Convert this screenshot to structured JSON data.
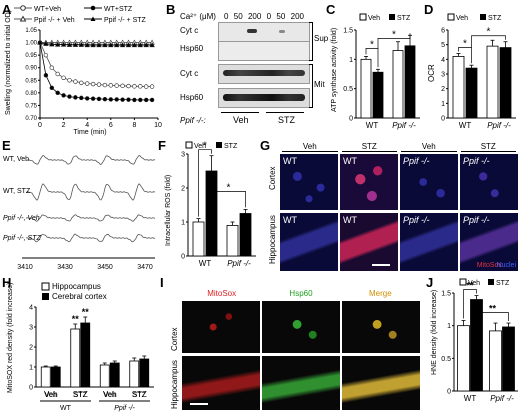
{
  "panels": {
    "A": {
      "letter": "A",
      "legend": [
        "WT+Veh",
        "WT+STZ",
        "Ppif -/- + Veh",
        "Ppif -/- + STZ"
      ],
      "ylabel": "Swelling (normalized to initial OD)",
      "xlabel": "Time (min)"
    },
    "B": {
      "letter": "B",
      "ca_label": "Ca²⁺ (μM)",
      "conc": [
        "0",
        "50",
        "200",
        "0",
        "50",
        "200"
      ],
      "rows": [
        "Cyt c",
        "Hsp60",
        "Cyt c",
        "Hsp60"
      ],
      "frac": [
        "Sup",
        "Mit"
      ],
      "ppif_label": "Ppif -/-:",
      "groups": [
        "Veh",
        "STZ"
      ]
    },
    "C": {
      "letter": "C",
      "legend": [
        "Veh",
        "STZ"
      ],
      "ylabel": "ATP synthase activity (fold)"
    },
    "D": {
      "letter": "D",
      "legend": [
        "Veh",
        "STZ"
      ],
      "ylabel": "OCR"
    },
    "E": {
      "letter": "E",
      "traces": [
        "WT, Veh",
        "WT, STZ",
        "Ppif -/-, Veh",
        "Ppif -/-, STZ"
      ],
      "xticks": [
        "3410",
        "3430",
        "3450",
        "3470"
      ]
    },
    "F": {
      "letter": "F",
      "legend": [
        "Veh",
        "STZ"
      ],
      "ylabel": "Intracellular ROS (fold)"
    },
    "G": {
      "letter": "G",
      "cols": [
        "Veh",
        "STZ",
        "Veh",
        "STZ"
      ],
      "rows": [
        "Cortex",
        "Hippocampus"
      ],
      "tiles": [
        "WT",
        "WT",
        "Ppif -/-",
        "Ppif -/-"
      ],
      "stain": "MitoSox",
      "nuclei": "Nuclei"
    },
    "H": {
      "letter": "H",
      "legend": [
        "Hippocampus",
        "Cerebral cortex"
      ],
      "ylabel": "MitoSOX red density (fold increase)"
    },
    "I": {
      "letter": "I",
      "cols": [
        "MitoSox",
        "Hsp60",
        "Merge"
      ],
      "rows": [
        "Cortex",
        "Hippocampus"
      ]
    },
    "J": {
      "letter": "J",
      "legend": [
        "Veh",
        "STZ"
      ],
      "ylabel": "HNE density (fold increase)"
    }
  },
  "chart_data": [
    {
      "panel": "A",
      "type": "line",
      "xlabel": "Time (min)",
      "ylabel": "Swelling (normalized to initial OD)",
      "xlim": [
        0,
        10
      ],
      "ylim": [
        0.7,
        1.05
      ],
      "xticks": [
        0,
        2,
        4,
        6,
        8,
        10
      ],
      "yticks": [
        0.7,
        0.75,
        0.8,
        0.85,
        0.9,
        0.95,
        1.0,
        1.05
      ],
      "x": [
        0,
        0.5,
        1,
        1.5,
        2,
        2.5,
        3,
        3.5,
        4,
        4.5,
        5,
        5.5,
        6,
        6.5,
        7,
        7.5,
        8,
        8.5,
        9,
        9.5
      ],
      "series": [
        {
          "name": "WT+Veh",
          "marker": "open-circle",
          "values": [
            1.0,
            0.95,
            0.9,
            0.875,
            0.86,
            0.85,
            0.845,
            0.84,
            0.837,
            0.835,
            0.833,
            0.831,
            0.83,
            0.829,
            0.828,
            0.827,
            0.826,
            0.826,
            0.825,
            0.825
          ]
        },
        {
          "name": "WT+STZ",
          "marker": "filled-circle",
          "values": [
            1.0,
            0.87,
            0.82,
            0.8,
            0.79,
            0.785,
            0.782,
            0.78,
            0.778,
            0.777,
            0.776,
            0.775,
            0.774,
            0.774,
            0.773,
            0.773,
            0.772,
            0.772,
            0.772,
            0.772
          ]
        },
        {
          "name": "Ppif -/- + Veh",
          "marker": "open-triangle",
          "values": [
            1.0,
            1.0,
            1.0,
            1.0,
            1.0,
            1.0,
            1.0,
            1.0,
            1.0,
            1.0,
            1.0,
            1.0,
            1.0,
            1.0,
            1.0,
            1.0,
            1.0,
            1.0,
            1.0,
            1.0
          ]
        },
        {
          "name": "Ppif -/- + STZ",
          "marker": "filled-triangle",
          "values": [
            1.0,
            0.995,
            0.993,
            0.992,
            0.992,
            0.991,
            0.991,
            0.991,
            0.99,
            0.99,
            0.99,
            0.99,
            0.99,
            0.99,
            0.99,
            0.99,
            0.99,
            0.99,
            0.99,
            0.99
          ]
        }
      ]
    },
    {
      "panel": "C",
      "type": "bar",
      "ylabel": "ATP synthase activity (fold)",
      "categories": [
        "WT",
        "Ppif -/-"
      ],
      "ylim": [
        0,
        1.5
      ],
      "yticks": [
        0,
        0.5,
        1,
        1.5
      ],
      "series": [
        {
          "name": "Veh",
          "values": [
            1.0,
            1.15
          ],
          "err": [
            0.05,
            0.15
          ]
        },
        {
          "name": "STZ",
          "values": [
            0.78,
            1.23
          ],
          "err": [
            0.05,
            0.18
          ]
        }
      ],
      "sig": [
        "*",
        "*"
      ]
    },
    {
      "panel": "D",
      "type": "bar",
      "ylabel": "OCR",
      "categories": [
        "WT",
        "Ppif -/-"
      ],
      "ylim": [
        0,
        6
      ],
      "yticks": [
        0,
        1,
        2,
        3,
        4,
        5,
        6
      ],
      "series": [
        {
          "name": "Veh",
          "values": [
            4.2,
            4.9
          ],
          "err": [
            0.2,
            0.4
          ]
        },
        {
          "name": "STZ",
          "values": [
            3.4,
            4.8
          ],
          "err": [
            0.2,
            0.4
          ]
        }
      ],
      "sig": [
        "*",
        "*"
      ]
    },
    {
      "panel": "F",
      "type": "bar",
      "ylabel": "Intracellular ROS (fold)",
      "categories": [
        "WT",
        "Ppif -/-"
      ],
      "ylim": [
        0,
        3
      ],
      "yticks": [
        0,
        1,
        2,
        3
      ],
      "series": [
        {
          "name": "Veh",
          "values": [
            1.0,
            0.9
          ],
          "err": [
            0.1,
            0.1
          ]
        },
        {
          "name": "STZ",
          "values": [
            2.5,
            1.25
          ],
          "err": [
            0.45,
            0.12
          ]
        }
      ],
      "sig": [
        "*",
        "*"
      ]
    },
    {
      "panel": "H",
      "type": "bar",
      "ylabel": "MitoSOX red density (fold increase)",
      "categories": [
        "Veh",
        "STZ",
        "Veh",
        "STZ"
      ],
      "groups": [
        "WT",
        "Ppif -/-"
      ],
      "ylim": [
        0,
        4
      ],
      "yticks": [
        0,
        1,
        2,
        3,
        4
      ],
      "series": [
        {
          "name": "Hippocampus",
          "values": [
            1.0,
            2.9,
            1.1,
            1.3
          ],
          "err": [
            0.05,
            0.25,
            0.1,
            0.15
          ]
        },
        {
          "name": "Cerebral cortex",
          "values": [
            1.0,
            3.2,
            1.2,
            1.4
          ],
          "err": [
            0.05,
            0.3,
            0.1,
            0.15
          ]
        }
      ],
      "sig": [
        "**",
        "**"
      ]
    },
    {
      "panel": "J",
      "type": "bar",
      "ylabel": "HNE density (fold increase)",
      "categories": [
        "WT",
        "Ppif -/-"
      ],
      "ylim": [
        0,
        1.5
      ],
      "yticks": [
        0,
        0.5,
        1,
        1.5
      ],
      "series": [
        {
          "name": "Veh",
          "values": [
            1.0,
            0.92
          ],
          "err": [
            0.08,
            0.12
          ]
        },
        {
          "name": "STZ",
          "values": [
            1.4,
            0.98
          ],
          "err": [
            0.06,
            0.06
          ]
        }
      ],
      "sig": [
        "**",
        "**"
      ]
    }
  ]
}
